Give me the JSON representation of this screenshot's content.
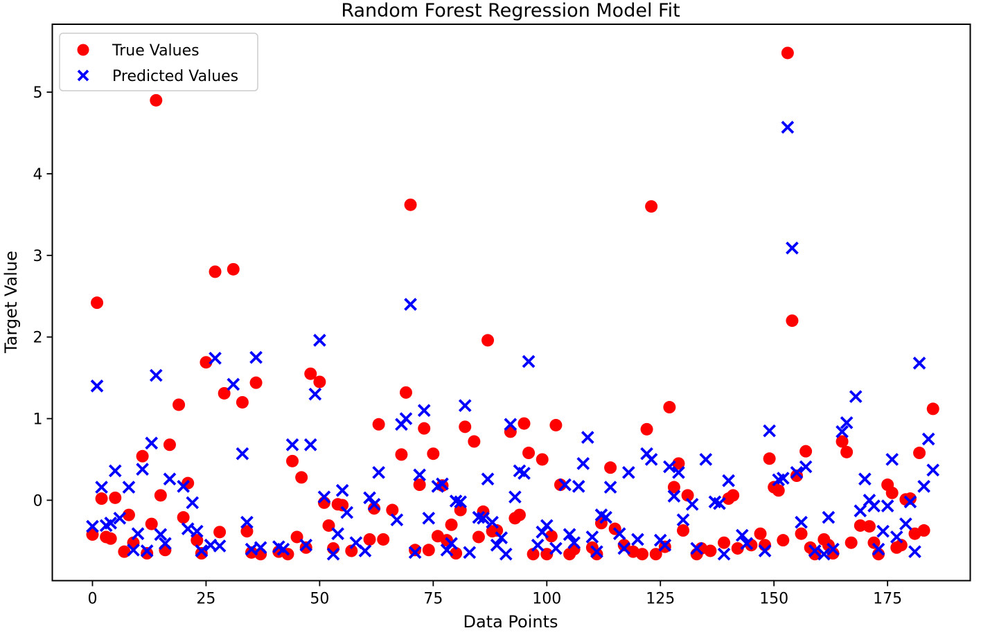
{
  "chart_data": {
    "type": "scatter",
    "title": "Random Forest Regression Model Fit",
    "xlabel": "Data Points",
    "ylabel": "Target Value",
    "xlim": [
      -8.84,
      193.2
    ],
    "ylim": [
      -0.985,
      5.832
    ],
    "x_ticks": [
      0,
      25,
      50,
      75,
      100,
      125,
      150,
      175
    ],
    "y_ticks": [
      0,
      1,
      2,
      3,
      4,
      5
    ],
    "grid": false,
    "legend_position": "upper-left",
    "legend": [
      {
        "label": "True Values",
        "marker": "circle",
        "color": "#ff0000"
      },
      {
        "label": "Predicted Values",
        "marker": "x",
        "color": "#0000ff"
      }
    ],
    "series": [
      {
        "name": "True Values",
        "marker": "circle",
        "color": "#ff0000",
        "points": [
          [
            0,
            -0.42
          ],
          [
            1,
            2.42
          ],
          [
            2,
            0.02
          ],
          [
            3,
            -0.45
          ],
          [
            4,
            -0.47
          ],
          [
            5,
            0.03
          ],
          [
            7,
            -0.63
          ],
          [
            8,
            -0.18
          ],
          [
            9,
            -0.52
          ],
          [
            11,
            0.54
          ],
          [
            12,
            -0.65
          ],
          [
            13,
            -0.29
          ],
          [
            14,
            4.9
          ],
          [
            15,
            0.06
          ],
          [
            16,
            -0.61
          ],
          [
            17,
            0.68
          ],
          [
            19,
            1.17
          ],
          [
            20,
            -0.21
          ],
          [
            21,
            0.21
          ],
          [
            23,
            -0.49
          ],
          [
            24,
            -0.65
          ],
          [
            25,
            1.69
          ],
          [
            27,
            2.8
          ],
          [
            28,
            -0.39
          ],
          [
            29,
            1.31
          ],
          [
            31,
            2.83
          ],
          [
            33,
            1.2
          ],
          [
            34,
            -0.38
          ],
          [
            35,
            -0.64
          ],
          [
            36,
            1.44
          ],
          [
            37,
            -0.66
          ],
          [
            41,
            -0.63
          ],
          [
            43,
            -0.66
          ],
          [
            44,
            0.48
          ],
          [
            45,
            -0.45
          ],
          [
            46,
            0.28
          ],
          [
            47,
            -0.58
          ],
          [
            48,
            1.55
          ],
          [
            50,
            1.45
          ],
          [
            51,
            -0.03
          ],
          [
            52,
            -0.31
          ],
          [
            53,
            -0.59
          ],
          [
            54,
            -0.05
          ],
          [
            55,
            -0.06
          ],
          [
            57,
            -0.62
          ],
          [
            61,
            -0.48
          ],
          [
            62,
            -0.1
          ],
          [
            63,
            0.93
          ],
          [
            64,
            -0.48
          ],
          [
            66,
            -0.12
          ],
          [
            68,
            0.56
          ],
          [
            69,
            1.32
          ],
          [
            70,
            3.62
          ],
          [
            71,
            -0.61
          ],
          [
            72,
            0.19
          ],
          [
            73,
            0.88
          ],
          [
            74,
            -0.61
          ],
          [
            75,
            0.57
          ],
          [
            76,
            -0.44
          ],
          [
            77,
            0.18
          ],
          [
            78,
            -0.49
          ],
          [
            79,
            -0.3
          ],
          [
            80,
            -0.65
          ],
          [
            81,
            -0.12
          ],
          [
            82,
            0.9
          ],
          [
            84,
            0.72
          ],
          [
            85,
            -0.45
          ],
          [
            86,
            -0.14
          ],
          [
            87,
            1.96
          ],
          [
            88,
            -0.38
          ],
          [
            89,
            -0.37
          ],
          [
            92,
            0.84
          ],
          [
            93,
            -0.22
          ],
          [
            94,
            -0.18
          ],
          [
            95,
            0.94
          ],
          [
            96,
            0.58
          ],
          [
            97,
            -0.66
          ],
          [
            99,
            0.5
          ],
          [
            100,
            -0.66
          ],
          [
            101,
            -0.44
          ],
          [
            102,
            0.92
          ],
          [
            103,
            0.19
          ],
          [
            105,
            -0.66
          ],
          [
            106,
            -0.6
          ],
          [
            110,
            -0.58
          ],
          [
            111,
            -0.66
          ],
          [
            112,
            -0.28
          ],
          [
            114,
            0.4
          ],
          [
            115,
            -0.35
          ],
          [
            117,
            -0.55
          ],
          [
            119,
            -0.63
          ],
          [
            121,
            -0.66
          ],
          [
            122,
            0.87
          ],
          [
            123,
            3.6
          ],
          [
            124,
            -0.66
          ],
          [
            126,
            -0.57
          ],
          [
            127,
            1.14
          ],
          [
            128,
            0.16
          ],
          [
            129,
            0.45
          ],
          [
            130,
            -0.37
          ],
          [
            131,
            0.06
          ],
          [
            133,
            -0.66
          ],
          [
            134,
            -0.59
          ],
          [
            136,
            -0.62
          ],
          [
            139,
            -0.52
          ],
          [
            140,
            0.02
          ],
          [
            141,
            0.06
          ],
          [
            142,
            -0.59
          ],
          [
            145,
            -0.55
          ],
          [
            147,
            -0.41
          ],
          [
            148,
            -0.55
          ],
          [
            149,
            0.51
          ],
          [
            150,
            0.16
          ],
          [
            151,
            0.12
          ],
          [
            152,
            -0.49
          ],
          [
            153,
            5.48
          ],
          [
            154,
            2.2
          ],
          [
            155,
            0.3
          ],
          [
            156,
            -0.41
          ],
          [
            157,
            0.6
          ],
          [
            158,
            -0.58
          ],
          [
            159,
            -0.66
          ],
          [
            161,
            -0.48
          ],
          [
            162,
            -0.55
          ],
          [
            163,
            -0.65
          ],
          [
            165,
            0.72
          ],
          [
            166,
            0.59
          ],
          [
            167,
            -0.52
          ],
          [
            169,
            -0.31
          ],
          [
            171,
            -0.32
          ],
          [
            172,
            -0.52
          ],
          [
            173,
            -0.66
          ],
          [
            175,
            0.19
          ],
          [
            176,
            0.09
          ],
          [
            177,
            -0.58
          ],
          [
            178,
            -0.55
          ],
          [
            179,
            0.01
          ],
          [
            180,
            0.02
          ],
          [
            181,
            -0.41
          ],
          [
            182,
            0.58
          ],
          [
            183,
            -0.37
          ],
          [
            185,
            1.12
          ]
        ]
      },
      {
        "name": "Predicted Values",
        "marker": "x",
        "color": "#0000ff",
        "points": [
          [
            0,
            -0.32
          ],
          [
            1,
            1.4
          ],
          [
            2,
            0.16
          ],
          [
            3,
            -0.31
          ],
          [
            4,
            -0.28
          ],
          [
            5,
            0.36
          ],
          [
            6,
            -0.22
          ],
          [
            8,
            0.16
          ],
          [
            9,
            -0.61
          ],
          [
            10,
            -0.41
          ],
          [
            11,
            0.38
          ],
          [
            12,
            -0.62
          ],
          [
            13,
            0.7
          ],
          [
            14,
            1.53
          ],
          [
            15,
            -0.42
          ],
          [
            16,
            -0.53
          ],
          [
            17,
            0.26
          ],
          [
            20,
            0.17
          ],
          [
            21,
            -0.35
          ],
          [
            22,
            -0.03
          ],
          [
            23,
            -0.38
          ],
          [
            24,
            -0.62
          ],
          [
            26,
            -0.55
          ],
          [
            27,
            1.74
          ],
          [
            28,
            -0.56
          ],
          [
            31,
            1.42
          ],
          [
            33,
            0.57
          ],
          [
            34,
            -0.27
          ],
          [
            35,
            -0.6
          ],
          [
            36,
            1.75
          ],
          [
            37,
            -0.58
          ],
          [
            41,
            -0.57
          ],
          [
            42,
            -0.6
          ],
          [
            44,
            0.68
          ],
          [
            47,
            -0.55
          ],
          [
            48,
            0.68
          ],
          [
            49,
            1.3
          ],
          [
            50,
            1.96
          ],
          [
            51,
            0.04
          ],
          [
            53,
            -0.66
          ],
          [
            54,
            -0.41
          ],
          [
            55,
            0.12
          ],
          [
            56,
            -0.15
          ],
          [
            58,
            -0.52
          ],
          [
            60,
            -0.62
          ],
          [
            61,
            0.03
          ],
          [
            62,
            -0.05
          ],
          [
            63,
            0.34
          ],
          [
            67,
            -0.24
          ],
          [
            68,
            0.93
          ],
          [
            69,
            1.0
          ],
          [
            70,
            2.4
          ],
          [
            71,
            -0.64
          ],
          [
            72,
            0.31
          ],
          [
            73,
            1.1
          ],
          [
            74,
            -0.22
          ],
          [
            76,
            0.17
          ],
          [
            77,
            0.2
          ],
          [
            78,
            -0.61
          ],
          [
            79,
            -0.53
          ],
          [
            80,
            -0.01
          ],
          [
            81,
            -0.02
          ],
          [
            82,
            1.16
          ],
          [
            83,
            -0.64
          ],
          [
            85,
            -0.21
          ],
          [
            86,
            -0.22
          ],
          [
            87,
            0.26
          ],
          [
            88,
            -0.27
          ],
          [
            89,
            -0.55
          ],
          [
            90,
            -0.46
          ],
          [
            91,
            -0.66
          ],
          [
            92,
            0.93
          ],
          [
            93,
            0.04
          ],
          [
            94,
            0.36
          ],
          [
            95,
            0.33
          ],
          [
            96,
            1.7
          ],
          [
            98,
            -0.55
          ],
          [
            99,
            -0.39
          ],
          [
            100,
            -0.31
          ],
          [
            102,
            -0.59
          ],
          [
            104,
            0.19
          ],
          [
            105,
            -0.42
          ],
          [
            106,
            -0.52
          ],
          [
            107,
            0.17
          ],
          [
            108,
            0.45
          ],
          [
            109,
            0.77
          ],
          [
            110,
            -0.45
          ],
          [
            111,
            -0.63
          ],
          [
            112,
            -0.18
          ],
          [
            113,
            -0.21
          ],
          [
            114,
            0.16
          ],
          [
            116,
            -0.41
          ],
          [
            117,
            -0.59
          ],
          [
            118,
            0.34
          ],
          [
            120,
            -0.48
          ],
          [
            122,
            0.57
          ],
          [
            123,
            0.5
          ],
          [
            125,
            -0.49
          ],
          [
            126,
            -0.55
          ],
          [
            127,
            0.41
          ],
          [
            128,
            0.05
          ],
          [
            129,
            0.34
          ],
          [
            130,
            -0.24
          ],
          [
            132,
            -0.05
          ],
          [
            133,
            -0.59
          ],
          [
            135,
            0.5
          ],
          [
            137,
            -0.02
          ],
          [
            138,
            -0.04
          ],
          [
            139,
            -0.66
          ],
          [
            140,
            0.24
          ],
          [
            143,
            -0.43
          ],
          [
            144,
            -0.53
          ],
          [
            148,
            -0.62
          ],
          [
            149,
            0.85
          ],
          [
            151,
            0.25
          ],
          [
            152,
            0.27
          ],
          [
            153,
            4.57
          ],
          [
            154,
            3.09
          ],
          [
            155,
            0.34
          ],
          [
            156,
            -0.27
          ],
          [
            157,
            0.41
          ],
          [
            159,
            -0.62
          ],
          [
            161,
            -0.66
          ],
          [
            162,
            -0.21
          ],
          [
            163,
            -0.6
          ],
          [
            165,
            0.84
          ],
          [
            166,
            0.95
          ],
          [
            168,
            1.27
          ],
          [
            169,
            -0.13
          ],
          [
            170,
            0.26
          ],
          [
            171,
            0.0
          ],
          [
            172,
            -0.07
          ],
          [
            173,
            -0.6
          ],
          [
            174,
            -0.38
          ],
          [
            175,
            -0.07
          ],
          [
            176,
            0.5
          ],
          [
            177,
            -0.45
          ],
          [
            179,
            -0.29
          ],
          [
            180,
            -0.02
          ],
          [
            181,
            -0.63
          ],
          [
            182,
            1.68
          ],
          [
            183,
            0.17
          ],
          [
            184,
            0.75
          ],
          [
            185,
            0.37
          ]
        ]
      }
    ]
  }
}
